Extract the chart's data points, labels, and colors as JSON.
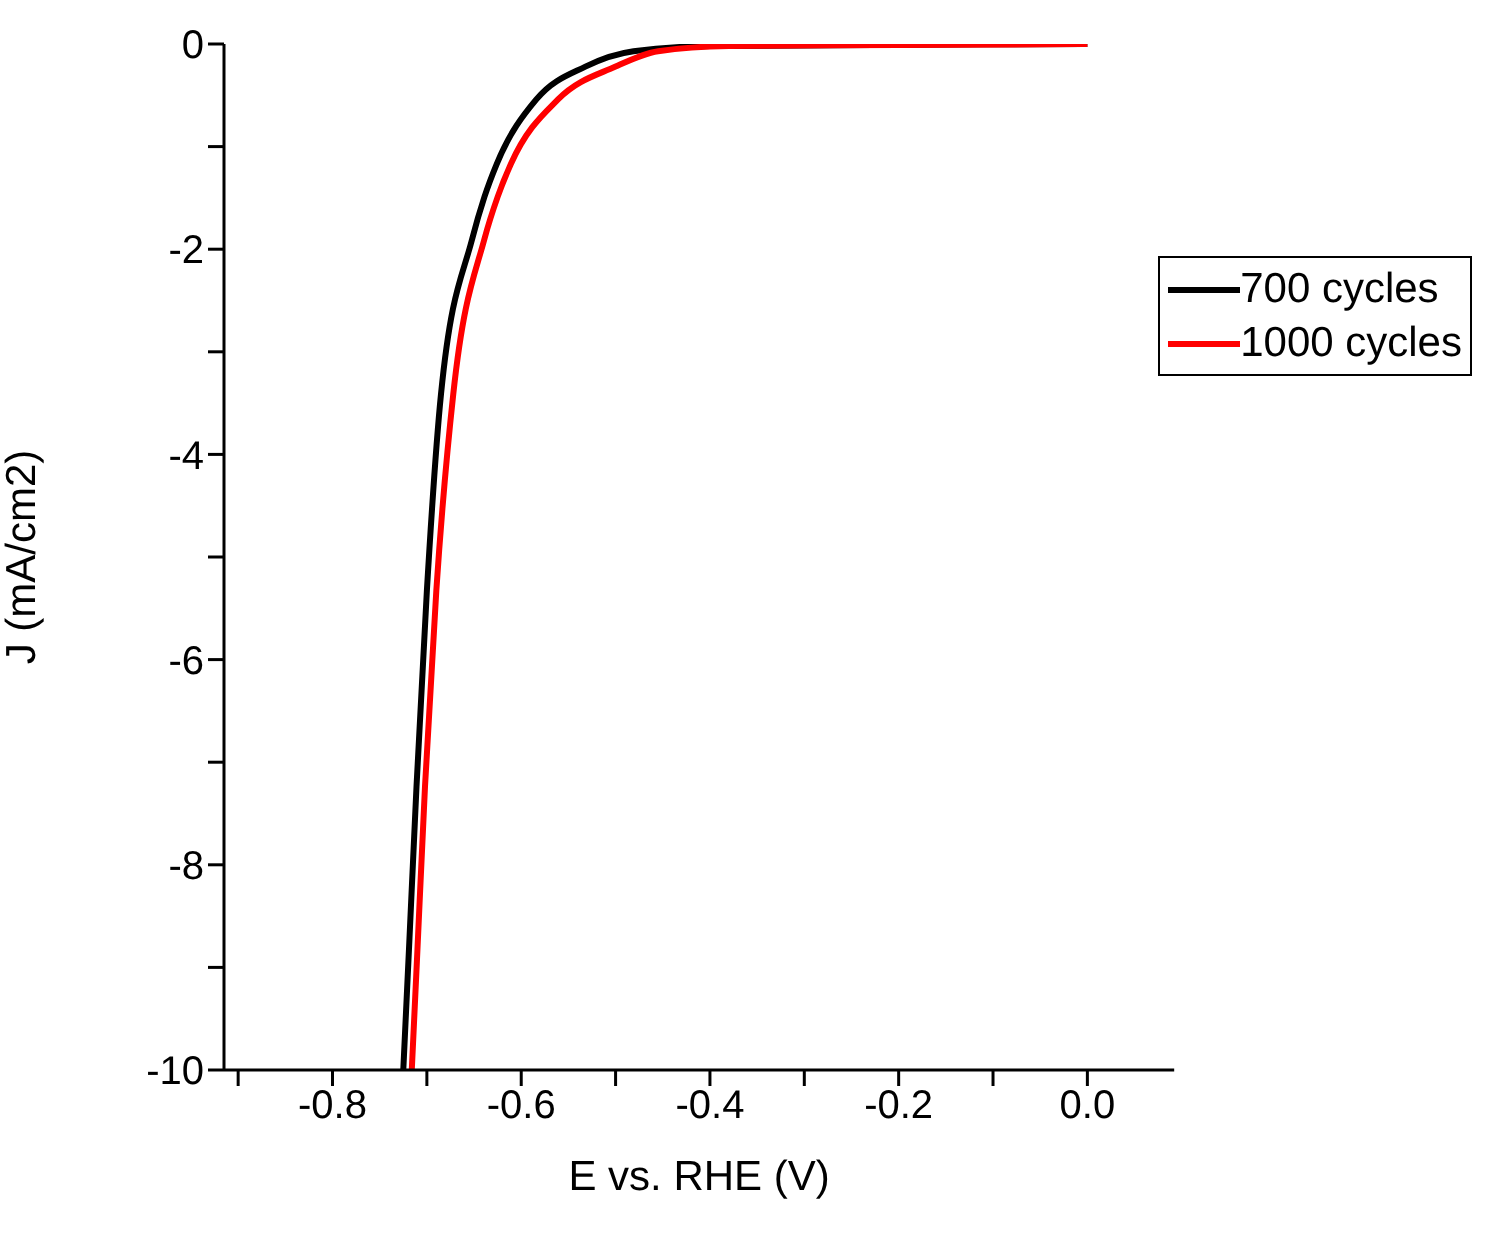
{
  "chart_data": {
    "type": "line",
    "xlabel": "E vs. RHE (V)",
    "ylabel": "J (mA/cm2)",
    "xlim": [
      -0.915,
      0.092
    ],
    "ylim": [
      -10,
      0
    ],
    "xticks": [
      {
        "value": -0.9,
        "label": null
      },
      -0.8,
      {
        "value": -0.7,
        "label": null
      },
      -0.6,
      {
        "value": -0.5,
        "label": null
      },
      -0.4,
      {
        "value": -0.3,
        "label": null
      },
      -0.2,
      {
        "value": -0.1,
        "label": null
      },
      {
        "value": 0,
        "label": "0.0"
      }
    ],
    "yticks": [
      -10,
      {
        "value": -9,
        "label": null
      },
      -8,
      {
        "value": -7,
        "label": null
      },
      -6,
      {
        "value": -5,
        "label": null
      },
      -4,
      {
        "value": -3,
        "label": null
      },
      -2,
      {
        "value": -1,
        "label": null
      },
      0
    ],
    "grid": false,
    "legend": "top right",
    "marker": "none",
    "line_style": "solid",
    "series": [
      {
        "name": "700 cycles",
        "color": "#000000",
        "x": [
          -0.725,
          -0.719,
          -0.711,
          -0.7,
          -0.685,
          -0.652,
          -0.639,
          -0.626,
          -0.584,
          -0.532,
          -0.481,
          -0.4,
          0
        ],
        "values": [
          -10,
          -8.83,
          -7.24,
          -5.33,
          -3.41,
          -1.9,
          -1.49,
          -1.17,
          -0.54,
          -0.22,
          -0.07,
          -0.02,
          0
        ]
      },
      {
        "name": "1000 cycles",
        "color": "#ff0000",
        "x": [
          -0.716,
          -0.71,
          -0.702,
          -0.69,
          -0.672,
          -0.639,
          -0.625,
          -0.611,
          -0.561,
          -0.5,
          -0.455,
          -0.38,
          -0.2,
          0
        ],
        "values": [
          -10,
          -8.83,
          -7.24,
          -5.33,
          -3.41,
          -1.9,
          -1.49,
          -1.17,
          -0.54,
          -0.22,
          -0.07,
          -0.02,
          -0.01,
          0
        ]
      }
    ]
  }
}
